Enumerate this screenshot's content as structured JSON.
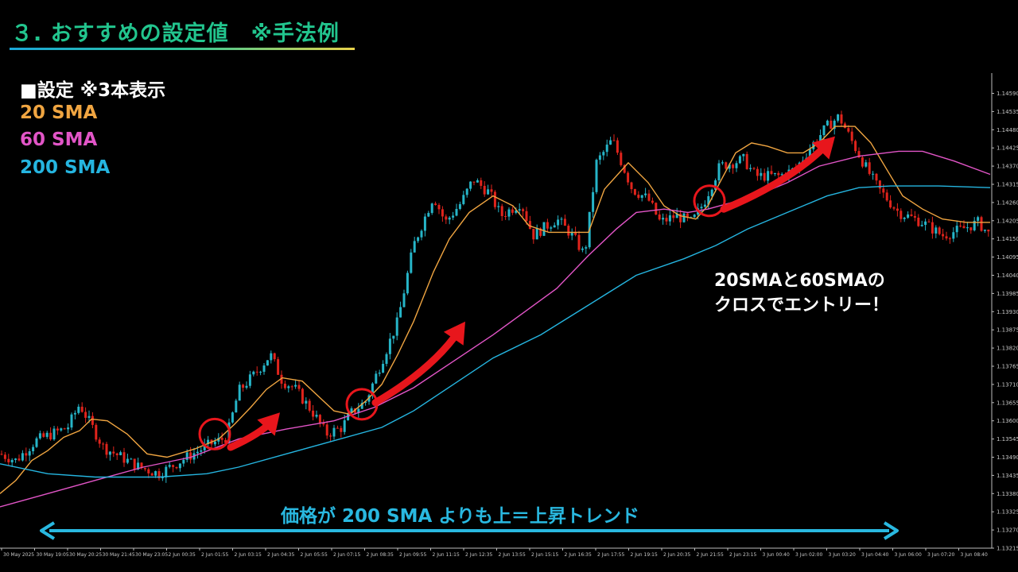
{
  "header": {
    "title": "３. おすすめの設定値　※手法例"
  },
  "legend": {
    "heading": "■設定 ※3本表示",
    "items": [
      "20 SMA",
      "60 SMA",
      "200 SMA"
    ]
  },
  "callout": {
    "line1": "20SMAと60SMAの",
    "line2": "クロスでエントリー！"
  },
  "trend_caption": "価格が 200 SMA よりも上＝上昇トレンド",
  "colors": {
    "title": "#22c58e",
    "sma20": "#f0a541",
    "sma60": "#e255c7",
    "sma200": "#25b5e0",
    "bull_candle": "#26b5c8",
    "bear_candle": "#e0241c",
    "highlight_circle": "#e8161c",
    "trend_arrow": "#29b8e0"
  },
  "chart_data": {
    "type": "candlestick",
    "ylim": [
      1.13215,
      1.1462
    ],
    "y_ticks": [
      "1.14590",
      "1.14535",
      "1.14480",
      "1.14425",
      "1.14370",
      "1.14315",
      "1.14260",
      "1.14205",
      "1.14150",
      "1.14095",
      "1.14040",
      "1.13985",
      "1.13930",
      "1.13875",
      "1.13820",
      "1.13765",
      "1.13710",
      "1.13655",
      "1.13600",
      "1.13545",
      "1.13490",
      "1.13435",
      "1.13380",
      "1.13325",
      "1.13270",
      "1.13215"
    ],
    "x_ticks": [
      "30 May 2025",
      "30 May 19:05",
      "30 May 20:25",
      "30 May 21:45",
      "30 May 23:05",
      "2 Jun 00:35",
      "2 Jun 01:55",
      "2 Jun 03:15",
      "2 Jun 04:35",
      "2 Jun 05:55",
      "2 Jun 07:15",
      "2 Jun 08:35",
      "2 Jun 09:55",
      "2 Jun 11:15",
      "2 Jun 12:35",
      "2 Jun 13:55",
      "2 Jun 15:15",
      "2 Jun 16:35",
      "2 Jun 17:55",
      "2 Jun 19:15",
      "2 Jun 20:35",
      "2 Jun 21:55",
      "2 Jun 23:15",
      "3 Jun 00:40",
      "3 Jun 02:00",
      "3 Jun 03:20",
      "3 Jun 04:40",
      "3 Jun 06:00",
      "3 Jun 07:20",
      "3 Jun 08:40"
    ],
    "price_path": [
      [
        0,
        1.135
      ],
      [
        20,
        1.1348
      ],
      [
        45,
        1.1354
      ],
      [
        85,
        1.1358
      ],
      [
        100,
        1.1365
      ],
      [
        130,
        1.1352
      ],
      [
        175,
        1.1346
      ],
      [
        200,
        1.1344
      ],
      [
        235,
        1.1349
      ],
      [
        265,
        1.1353
      ],
      [
        285,
        1.1355
      ],
      [
        300,
        1.1369
      ],
      [
        320,
        1.1374
      ],
      [
        340,
        1.138
      ],
      [
        355,
        1.1372
      ],
      [
        370,
        1.137
      ],
      [
        395,
        1.1362
      ],
      [
        410,
        1.1356
      ],
      [
        430,
        1.1358
      ],
      [
        440,
        1.1362
      ],
      [
        460,
        1.1366
      ],
      [
        480,
        1.1378
      ],
      [
        500,
        1.139
      ],
      [
        520,
        1.1413
      ],
      [
        545,
        1.1428
      ],
      [
        560,
        1.142
      ],
      [
        580,
        1.1426
      ],
      [
        595,
        1.1433
      ],
      [
        615,
        1.1429
      ],
      [
        630,
        1.1422
      ],
      [
        655,
        1.1426
      ],
      [
        670,
        1.1416
      ],
      [
        700,
        1.1421
      ],
      [
        720,
        1.1416
      ],
      [
        735,
        1.141
      ],
      [
        750,
        1.1438
      ],
      [
        770,
        1.1445
      ],
      [
        795,
        1.143
      ],
      [
        815,
        1.1427
      ],
      [
        830,
        1.142
      ],
      [
        850,
        1.1422
      ],
      [
        870,
        1.142
      ],
      [
        885,
        1.1426
      ],
      [
        905,
        1.1437
      ],
      [
        935,
        1.1439
      ],
      [
        950,
        1.1434
      ],
      [
        980,
        1.1434
      ],
      [
        1000,
        1.1436
      ],
      [
        1020,
        1.1443
      ],
      [
        1040,
        1.1449
      ],
      [
        1055,
        1.1452
      ],
      [
        1070,
        1.1445
      ],
      [
        1090,
        1.1436
      ],
      [
        1105,
        1.143
      ],
      [
        1130,
        1.1423
      ],
      [
        1160,
        1.142
      ],
      [
        1185,
        1.1416
      ],
      [
        1210,
        1.1418
      ],
      [
        1230,
        1.142
      ],
      [
        1245,
        1.1416
      ]
    ],
    "series": [
      {
        "name": "20 SMA",
        "points": [
          [
            0,
            1.1338
          ],
          [
            20,
            1.1342
          ],
          [
            40,
            1.1348
          ],
          [
            60,
            1.1351
          ],
          [
            80,
            1.1355
          ],
          [
            100,
            1.1357
          ],
          [
            115,
            1.13605
          ],
          [
            135,
            1.136
          ],
          [
            160,
            1.1356
          ],
          [
            185,
            1.135
          ],
          [
            210,
            1.1349
          ],
          [
            245,
            1.13515
          ],
          [
            275,
            1.13545
          ],
          [
            295,
            1.1359
          ],
          [
            315,
            1.1364
          ],
          [
            335,
            1.13695
          ],
          [
            355,
            1.1373
          ],
          [
            380,
            1.1372
          ],
          [
            400,
            1.13675
          ],
          [
            420,
            1.1363
          ],
          [
            440,
            1.1362
          ],
          [
            460,
            1.1366
          ],
          [
            480,
            1.1371
          ],
          [
            500,
            1.138
          ],
          [
            520,
            1.139
          ],
          [
            545,
            1.1405
          ],
          [
            565,
            1.1415
          ],
          [
            590,
            1.1423
          ],
          [
            620,
            1.1428
          ],
          [
            645,
            1.1425
          ],
          [
            665,
            1.1419
          ],
          [
            690,
            1.1417
          ],
          [
            715,
            1.1417
          ],
          [
            740,
            1.1417
          ],
          [
            760,
            1.143
          ],
          [
            790,
            1.1438
          ],
          [
            815,
            1.1432
          ],
          [
            835,
            1.1425
          ],
          [
            855,
            1.1422
          ],
          [
            875,
            1.1421
          ],
          [
            890,
            1.1425
          ],
          [
            905,
            1.1432
          ],
          [
            925,
            1.1441
          ],
          [
            945,
            1.1444
          ],
          [
            965,
            1.1443
          ],
          [
            990,
            1.1441
          ],
          [
            1010,
            1.1441
          ],
          [
            1030,
            1.1444
          ],
          [
            1050,
            1.1449
          ],
          [
            1075,
            1.1449
          ],
          [
            1095,
            1.1444
          ],
          [
            1115,
            1.1436
          ],
          [
            1135,
            1.1428
          ],
          [
            1160,
            1.1424
          ],
          [
            1185,
            1.1421
          ],
          [
            1215,
            1.142
          ],
          [
            1245,
            1.142
          ]
        ]
      },
      {
        "name": "60 SMA",
        "points": [
          [
            0,
            1.1334
          ],
          [
            60,
            1.1338
          ],
          [
            120,
            1.1342
          ],
          [
            180,
            1.1346
          ],
          [
            240,
            1.1349
          ],
          [
            300,
            1.13545
          ],
          [
            360,
            1.13575
          ],
          [
            420,
            1.136
          ],
          [
            470,
            1.1364
          ],
          [
            520,
            1.137
          ],
          [
            570,
            1.1378
          ],
          [
            620,
            1.1386
          ],
          [
            660,
            1.1393
          ],
          [
            700,
            1.14
          ],
          [
            740,
            1.141
          ],
          [
            775,
            1.1418
          ],
          [
            800,
            1.1423
          ],
          [
            835,
            1.1424
          ],
          [
            865,
            1.1423
          ],
          [
            890,
            1.1424
          ],
          [
            920,
            1.1426
          ],
          [
            950,
            1.1428
          ],
          [
            990,
            1.1432
          ],
          [
            1030,
            1.1437
          ],
          [
            1080,
            1.144
          ],
          [
            1130,
            1.14415
          ],
          [
            1160,
            1.14415
          ],
          [
            1200,
            1.14385
          ],
          [
            1245,
            1.14345
          ]
        ]
      },
      {
        "name": "200 SMA",
        "points": [
          [
            0,
            1.1347
          ],
          [
            60,
            1.1344
          ],
          [
            120,
            1.1343
          ],
          [
            200,
            1.1343
          ],
          [
            260,
            1.1344
          ],
          [
            300,
            1.1346
          ],
          [
            360,
            1.135
          ],
          [
            420,
            1.1354
          ],
          [
            480,
            1.1358
          ],
          [
            520,
            1.1363
          ],
          [
            570,
            1.1371
          ],
          [
            620,
            1.1379
          ],
          [
            680,
            1.1386
          ],
          [
            740,
            1.1395
          ],
          [
            800,
            1.1404
          ],
          [
            860,
            1.1409
          ],
          [
            900,
            1.1413
          ],
          [
            940,
            1.1418
          ],
          [
            990,
            1.1423
          ],
          [
            1040,
            1.1428
          ],
          [
            1080,
            1.14305
          ],
          [
            1120,
            1.1431
          ],
          [
            1180,
            1.1431
          ],
          [
            1245,
            1.14305
          ]
        ]
      }
    ],
    "highlights": [
      [
        270,
        1.1356
      ],
      [
        455,
        1.1365
      ],
      [
        892,
        1.14265
      ]
    ],
    "arrows": [
      {
        "from": [
          290,
          1.1352
        ],
        "to": [
          352,
          1.13625
        ]
      },
      {
        "from": [
          472,
          1.13655
        ],
        "to": [
          585,
          1.139
        ]
      },
      {
        "from": [
          910,
          1.1424
        ],
        "to": [
          1050,
          1.1446
        ]
      }
    ]
  }
}
